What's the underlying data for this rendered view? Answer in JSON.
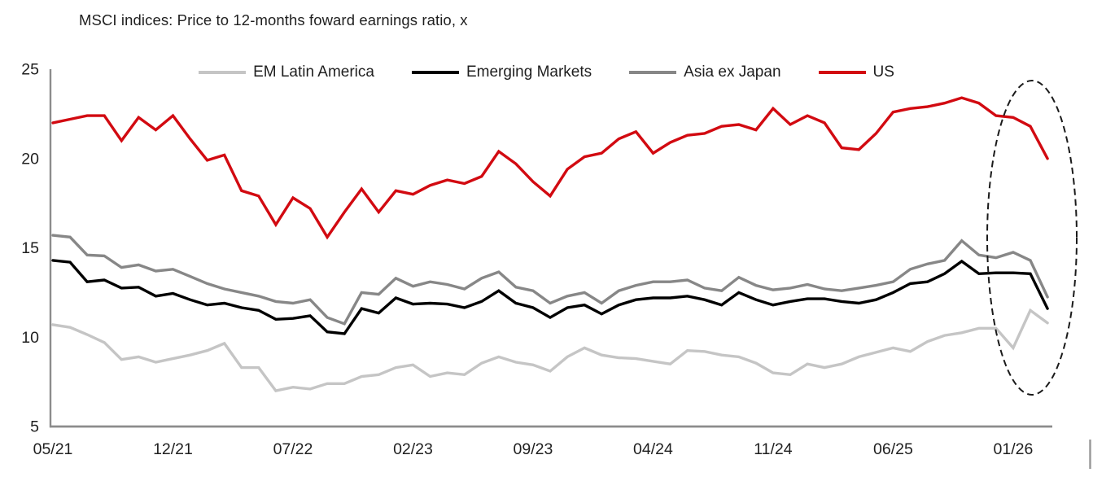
{
  "chart_data": {
    "type": "line",
    "title": "MSCI indices: Price to 12-months foward earnings ratio, x",
    "xlabel": "",
    "ylabel": "",
    "ylim": [
      5,
      25
    ],
    "y_ticks": [
      25,
      20,
      15,
      10,
      5
    ],
    "grid": false,
    "legend_position": "top",
    "axis_color": "#8c8c8c",
    "text_color": "#1f1f1f",
    "x_labels": [
      "05/21",
      "06/21",
      "07/21",
      "08/21",
      "09/21",
      "10/21",
      "11/21",
      "12/21",
      "01/22",
      "02/22",
      "03/22",
      "04/22",
      "05/22",
      "06/22",
      "07/22",
      "08/22",
      "09/22",
      "10/22",
      "11/22",
      "12/22",
      "01/23",
      "02/23",
      "03/23",
      "04/23",
      "05/23",
      "06/23",
      "07/23",
      "08/23",
      "09/23",
      "10/23",
      "11/23",
      "12/23",
      "01/24",
      "02/24",
      "03/24",
      "04/24",
      "05/24",
      "06/24",
      "07/24",
      "08/24",
      "09/24",
      "10/24",
      "11/24",
      "12/24",
      "01/25",
      "02/25",
      "03/25",
      "04/25",
      "05/25",
      "06/25",
      "07/25",
      "08/25",
      "09/25",
      "10/25",
      "11/25",
      "12/25",
      "01/26",
      "02/26",
      "03/26"
    ],
    "x_tick_indices": [
      0,
      7,
      14,
      21,
      28,
      35,
      42,
      49,
      56
    ],
    "x_tick_labels": [
      "05/21",
      "12/21",
      "07/22",
      "02/23",
      "09/23",
      "04/24",
      "11/24",
      "06/25",
      "01/26"
    ],
    "series": [
      {
        "name": "EM Latin America",
        "color": "#c5c5c5",
        "values": [
          10.7,
          10.55,
          10.15,
          9.7,
          8.75,
          8.9,
          8.6,
          8.8,
          9,
          9.25,
          9.65,
          8.3,
          8.3,
          7,
          7.2,
          7.1,
          7.4,
          7.4,
          7.8,
          7.9,
          8.3,
          8.45,
          7.8,
          8,
          7.9,
          8.55,
          8.9,
          8.6,
          8.45,
          8.1,
          8.9,
          9.4,
          9,
          8.85,
          8.8,
          8.65,
          8.5,
          9.25,
          9.2,
          9,
          8.9,
          8.55,
          8,
          7.9,
          8.5,
          8.3,
          8.5,
          8.9,
          9.15,
          9.4,
          9.2,
          9.75,
          10.1,
          10.25,
          10.5,
          10.5,
          9.4,
          11.5,
          10.8
        ]
      },
      {
        "name": "Emerging Markets",
        "color": "#000000",
        "values": [
          14.3,
          14.2,
          13.1,
          13.2,
          12.75,
          12.8,
          12.3,
          12.45,
          12.1,
          11.8,
          11.9,
          11.65,
          11.5,
          11,
          11.05,
          11.2,
          10.3,
          10.2,
          11.6,
          11.35,
          12.2,
          11.85,
          11.9,
          11.85,
          11.65,
          12,
          12.6,
          11.9,
          11.65,
          11.1,
          11.65,
          11.8,
          11.3,
          11.8,
          12.1,
          12.2,
          12.2,
          12.3,
          12.1,
          11.8,
          12.5,
          12.1,
          11.8,
          12,
          12.15,
          12.15,
          12,
          11.9,
          12.1,
          12.5,
          13,
          13.1,
          13.55,
          14.25,
          13.55,
          13.6,
          13.6,
          13.55,
          11.6
        ]
      },
      {
        "name": "Asia ex Japan",
        "color": "#878787",
        "values": [
          15.7,
          15.6,
          14.6,
          14.55,
          13.9,
          14.05,
          13.7,
          13.8,
          13.4,
          13,
          12.7,
          12.5,
          12.3,
          12,
          11.9,
          12.1,
          11.1,
          10.75,
          12.5,
          12.4,
          13.3,
          12.85,
          13.1,
          12.95,
          12.7,
          13.3,
          13.65,
          12.8,
          12.6,
          11.9,
          12.3,
          12.5,
          11.9,
          12.6,
          12.9,
          13.1,
          13.1,
          13.2,
          12.75,
          12.6,
          13.35,
          12.9,
          12.65,
          12.75,
          12.95,
          12.7,
          12.6,
          12.75,
          12.9,
          13.1,
          13.8,
          14.1,
          14.3,
          15.4,
          14.6,
          14.45,
          14.75,
          14.3,
          12.25
        ]
      },
      {
        "name": "US",
        "color": "#d20a11",
        "values": [
          22,
          22.2,
          22.4,
          22.4,
          21,
          22.3,
          21.6,
          22.4,
          21.1,
          19.9,
          20.2,
          18.2,
          17.9,
          16.3,
          17.8,
          17.2,
          15.6,
          17,
          18.3,
          17,
          18.2,
          18,
          18.5,
          18.8,
          18.6,
          19,
          20.4,
          19.7,
          18.7,
          17.9,
          19.4,
          20.1,
          20.3,
          21.1,
          21.5,
          20.3,
          20.9,
          21.3,
          21.4,
          21.8,
          21.9,
          21.6,
          22.8,
          21.9,
          22.4,
          22,
          20.6,
          20.5,
          21.4,
          22.6,
          22.8,
          22.9,
          23.1,
          23.4,
          23.1,
          22.4,
          22.3,
          21.8,
          20
        ]
      }
    ],
    "annotation": {
      "type": "dashed-ellipse",
      "color": "#1a1a1a",
      "covers_x_labels": [
        "11/25",
        "12/25",
        "01/26",
        "02/26",
        "03/26"
      ],
      "description": "dashed ellipse highlighting the most recent months"
    }
  }
}
